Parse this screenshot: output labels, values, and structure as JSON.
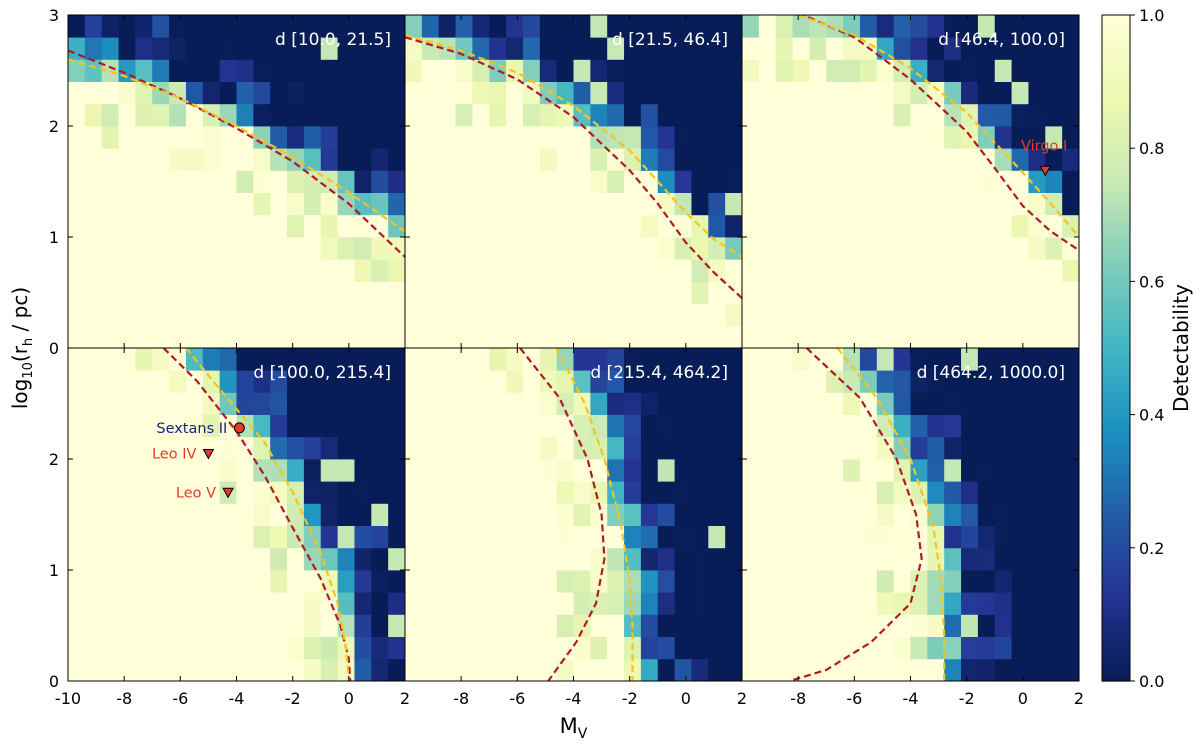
{
  "chart_data": {
    "type": "heatmap",
    "xlabel": "M",
    "xlabel_sub": "V",
    "ylabel_parts": [
      "log",
      "10",
      "(r",
      "h",
      " / pc)"
    ],
    "xlim": [
      -10,
      2
    ],
    "ylim": [
      0,
      3
    ],
    "x_tick_labels": [
      "-10",
      "-8",
      "-6",
      "-4",
      "-2",
      "0",
      "2"
    ],
    "x_tick_values": [
      -10,
      -8,
      -6,
      -4,
      -2,
      0,
      2
    ],
    "y_tick_labels": [
      "0",
      "1",
      "2",
      "3"
    ],
    "y_tick_values": [
      0,
      1,
      2,
      3
    ],
    "colorbar": {
      "label": "Detectability",
      "range": [
        0.0,
        1.0
      ],
      "tick_labels": [
        "0.0",
        "0.2",
        "0.4",
        "0.6",
        "0.8",
        "1.0"
      ],
      "tick_values": [
        0.0,
        0.2,
        0.4,
        0.6,
        0.8,
        1.0
      ],
      "colormap": "YlGnBu_r"
    },
    "grid_resolution": {
      "mv_step": 0.6,
      "logr_step": 0.2
    },
    "curve_colors": {
      "red": "#b2182b",
      "yellow": "#f5c518"
    },
    "panels": [
      {
        "title": "d [10.0, 21.5]",
        "boundary_yellow": [
          [
            -10,
            2.6
          ],
          [
            -8,
            2.45
          ],
          [
            -6,
            2.25
          ],
          [
            -4,
            2.0
          ],
          [
            -2,
            1.72
          ],
          [
            0,
            1.4
          ],
          [
            2,
            1.05
          ]
        ],
        "boundary_red": [
          [
            -10,
            2.68
          ],
          [
            -8,
            2.48
          ],
          [
            -6,
            2.25
          ],
          [
            -4,
            1.98
          ],
          [
            -2,
            1.68
          ],
          [
            0,
            1.3
          ],
          [
            2,
            0.82
          ]
        ],
        "markers": []
      },
      {
        "title": "d [21.5, 46.4]",
        "boundary_yellow": [
          [
            -10,
            2.82
          ],
          [
            -8,
            2.68
          ],
          [
            -6,
            2.48
          ],
          [
            -4,
            2.18
          ],
          [
            -2,
            1.78
          ],
          [
            0,
            1.22
          ],
          [
            1,
            0.98
          ],
          [
            2,
            0.82
          ]
        ],
        "boundary_red": [
          [
            -10,
            2.8
          ],
          [
            -8,
            2.65
          ],
          [
            -6,
            2.42
          ],
          [
            -4,
            2.08
          ],
          [
            -2,
            1.6
          ],
          [
            -1,
            1.3
          ],
          [
            0,
            0.95
          ],
          [
            1,
            0.68
          ],
          [
            2,
            0.45
          ]
        ],
        "markers": []
      },
      {
        "title": "d [46.4, 100.0]",
        "boundary_yellow": [
          [
            -8,
            3.0
          ],
          [
            -6,
            2.82
          ],
          [
            -4,
            2.52
          ],
          [
            -2,
            2.12
          ],
          [
            0,
            1.58
          ],
          [
            1,
            1.3
          ],
          [
            2,
            1.0
          ]
        ],
        "boundary_red": [
          [
            -8,
            3.02
          ],
          [
            -6,
            2.8
          ],
          [
            -4,
            2.42
          ],
          [
            -2,
            1.95
          ],
          [
            -1,
            1.62
          ],
          [
            0,
            1.28
          ],
          [
            1,
            1.05
          ],
          [
            2,
            0.88
          ]
        ],
        "markers": [
          {
            "name": "Virgo I",
            "mv": 0.8,
            "logr": 1.6,
            "shape": "triangle-down",
            "label_color": "#e8382a"
          }
        ]
      },
      {
        "title": "d [100.0, 215.4]",
        "boundary_yellow": [
          [
            -5.8,
            3.0
          ],
          [
            -4.5,
            2.6
          ],
          [
            -3,
            2.15
          ],
          [
            -2,
            1.7
          ],
          [
            -1,
            1.15
          ],
          [
            -0.4,
            0.7
          ],
          [
            -0.1,
            0.3
          ],
          [
            0,
            0.0
          ]
        ],
        "boundary_red": [
          [
            -6.6,
            3.0
          ],
          [
            -5.4,
            2.7
          ],
          [
            -4,
            2.25
          ],
          [
            -3,
            1.85
          ],
          [
            -2,
            1.38
          ],
          [
            -1,
            0.92
          ],
          [
            -0.3,
            0.5
          ],
          [
            0,
            0.2
          ],
          [
            0.05,
            0.0
          ]
        ],
        "markers": [
          {
            "name": "Sextans II",
            "mv": -3.9,
            "logr": 2.28,
            "shape": "circle",
            "label_color": "#1a237e"
          },
          {
            "name": "Leo IV",
            "mv": -5.0,
            "logr": 2.05,
            "shape": "triangle-down",
            "label_color": "#e8382a"
          },
          {
            "name": "Leo V",
            "mv": -4.3,
            "logr": 1.7,
            "shape": "triangle-down",
            "label_color": "#e8382a"
          }
        ]
      },
      {
        "title": "d [215.4, 464.2]",
        "boundary_yellow": [
          [
            -4.6,
            3.0
          ],
          [
            -3.6,
            2.5
          ],
          [
            -2.9,
            2.0
          ],
          [
            -2.3,
            1.4
          ],
          [
            -2.0,
            0.9
          ],
          [
            -1.9,
            0.5
          ],
          [
            -1.9,
            0.0
          ]
        ],
        "boundary_red": [
          [
            -5.9,
            3.0
          ],
          [
            -4.5,
            2.55
          ],
          [
            -3.5,
            2.0
          ],
          [
            -3.0,
            1.5
          ],
          [
            -2.9,
            1.1
          ],
          [
            -3.2,
            0.7
          ],
          [
            -3.9,
            0.35
          ],
          [
            -4.9,
            0.0
          ]
        ],
        "markers": []
      },
      {
        "title": "d [464.2, 1000.0]",
        "boundary_yellow": [
          [
            -6.6,
            3.0
          ],
          [
            -5.2,
            2.55
          ],
          [
            -4.0,
            2.0
          ],
          [
            -3.2,
            1.4
          ],
          [
            -2.9,
            0.9
          ],
          [
            -2.8,
            0.4
          ],
          [
            -2.8,
            0.0
          ]
        ],
        "boundary_red": [
          [
            -7.7,
            3.0
          ],
          [
            -5.8,
            2.55
          ],
          [
            -4.5,
            2.0
          ],
          [
            -3.8,
            1.5
          ],
          [
            -3.6,
            1.1
          ],
          [
            -4.0,
            0.7
          ],
          [
            -5.4,
            0.35
          ],
          [
            -7.0,
            0.1
          ],
          [
            -8.3,
            0.0
          ]
        ],
        "markers": []
      }
    ]
  }
}
